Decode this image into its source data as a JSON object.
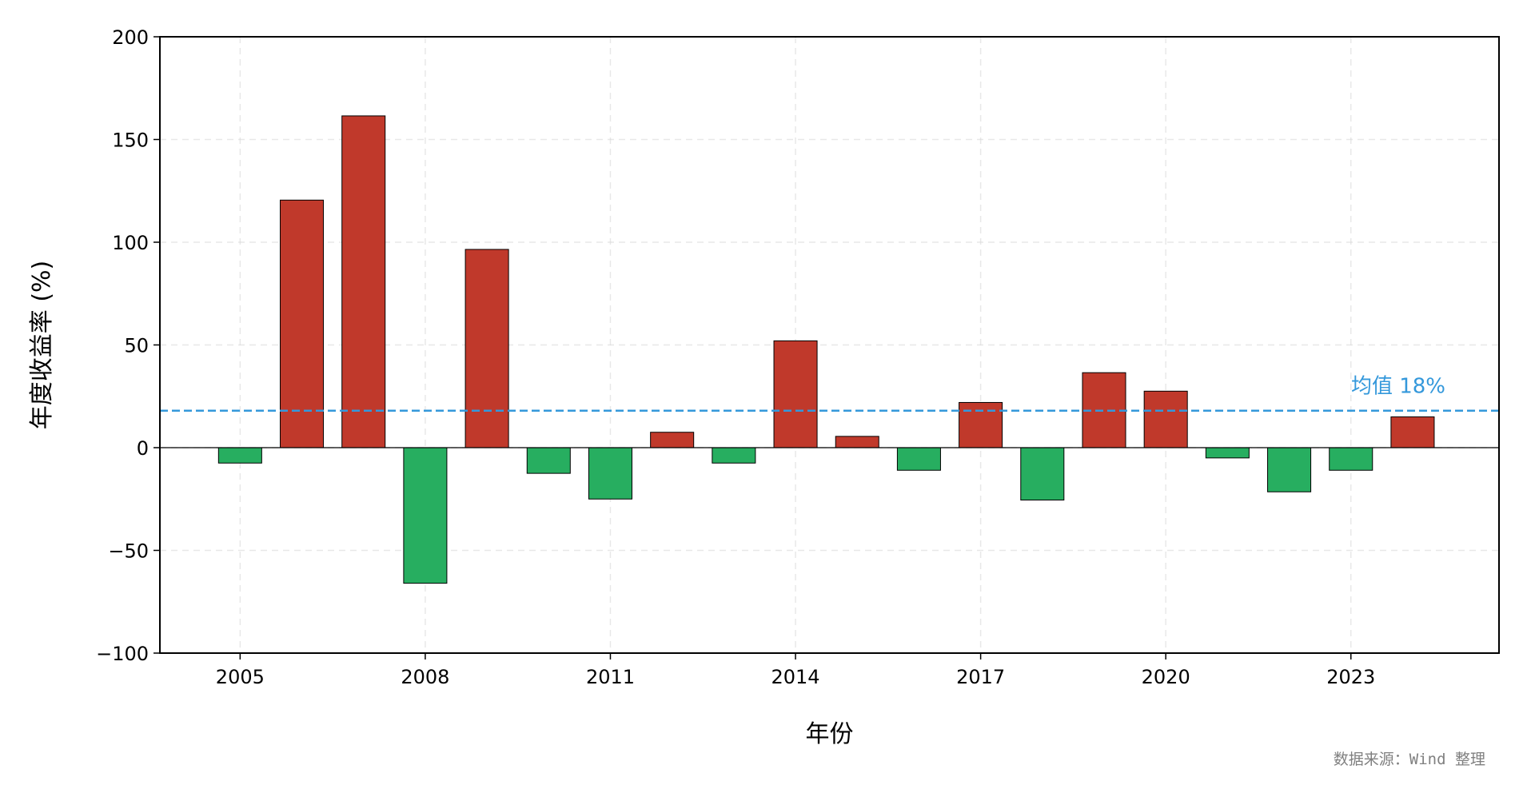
{
  "chart_data": {
    "type": "bar",
    "title": "",
    "xlabel": "年份",
    "ylabel": "年度收益率 (%)",
    "ylim": [
      -100,
      200
    ],
    "yticks": [
      -100,
      -50,
      0,
      50,
      100,
      150,
      200
    ],
    "ytick_labels": [
      "−100",
      "−50",
      "0",
      "50",
      "100",
      "150",
      "200"
    ],
    "xlim": [
      2003.7,
      2025.4
    ],
    "xticks": [
      2005,
      2008,
      2011,
      2014,
      2017,
      2020,
      2023
    ],
    "xtick_labels": [
      "2005",
      "2008",
      "2011",
      "2014",
      "2017",
      "2020",
      "2023"
    ],
    "grid": true,
    "categories": [
      2005,
      2006,
      2007,
      2008,
      2009,
      2010,
      2011,
      2012,
      2013,
      2014,
      2015,
      2016,
      2017,
      2018,
      2019,
      2020,
      2021,
      2022,
      2023,
      2024
    ],
    "values": [
      -7.5,
      120.5,
      161.5,
      -66,
      96.5,
      -12.5,
      -25,
      7.5,
      -7.5,
      52,
      5.5,
      -11,
      22,
      -25.5,
      36.5,
      27.5,
      -5,
      -21.5,
      -11,
      15
    ],
    "mean_line": {
      "value": 18,
      "label": "均值 18%"
    },
    "colors": {
      "positive": "#c0392b",
      "negative": "#27ae60",
      "mean": "#3498db",
      "bar_edge": "#000000"
    }
  },
  "source_note": "数据来源：Wind 整理"
}
